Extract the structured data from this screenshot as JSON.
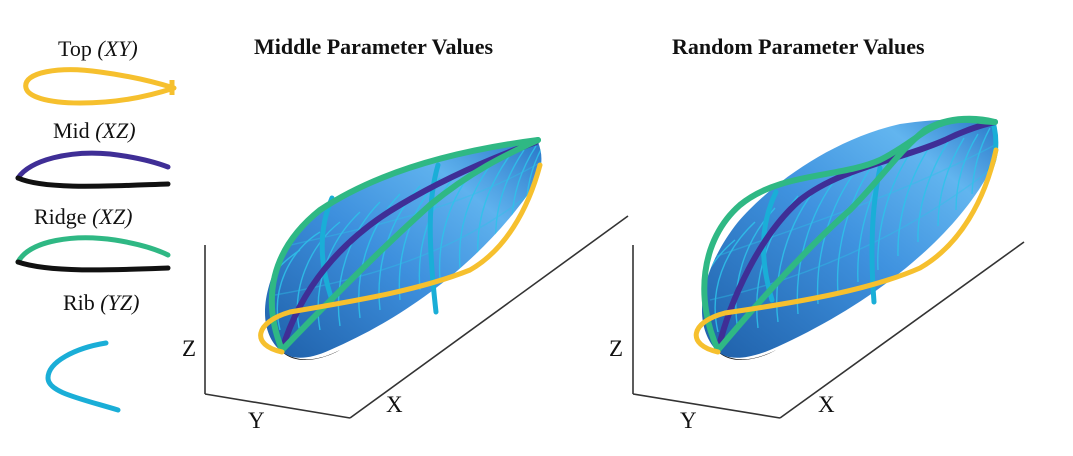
{
  "legend": [
    {
      "id": "top",
      "name": "Top",
      "plane": "(XY)",
      "color": "#F6C02E"
    },
    {
      "id": "mid",
      "name": "Mid",
      "plane": "(XZ)",
      "color": "#3F2E96"
    },
    {
      "id": "ridge",
      "name": "Ridge",
      "plane": "(XZ)",
      "color": "#2FB884"
    },
    {
      "id": "rib",
      "name": "Rib",
      "plane": "(YZ)",
      "color": "#1AAED7"
    }
  ],
  "panels": [
    {
      "id": "middle",
      "title": "Middle Parameter Values",
      "axis_x": "X",
      "axis_y": "Y",
      "axis_z": "Z"
    },
    {
      "id": "random",
      "title": "Random Parameter Values",
      "axis_x": "X",
      "axis_y": "Y",
      "axis_z": "Z"
    }
  ],
  "colors": {
    "surface_light": "#4FA6E8",
    "surface_dark": "#1E5FA8",
    "rib_lines": "#2EC3EA",
    "lower_curve": "#111111",
    "axes": "#333333"
  }
}
